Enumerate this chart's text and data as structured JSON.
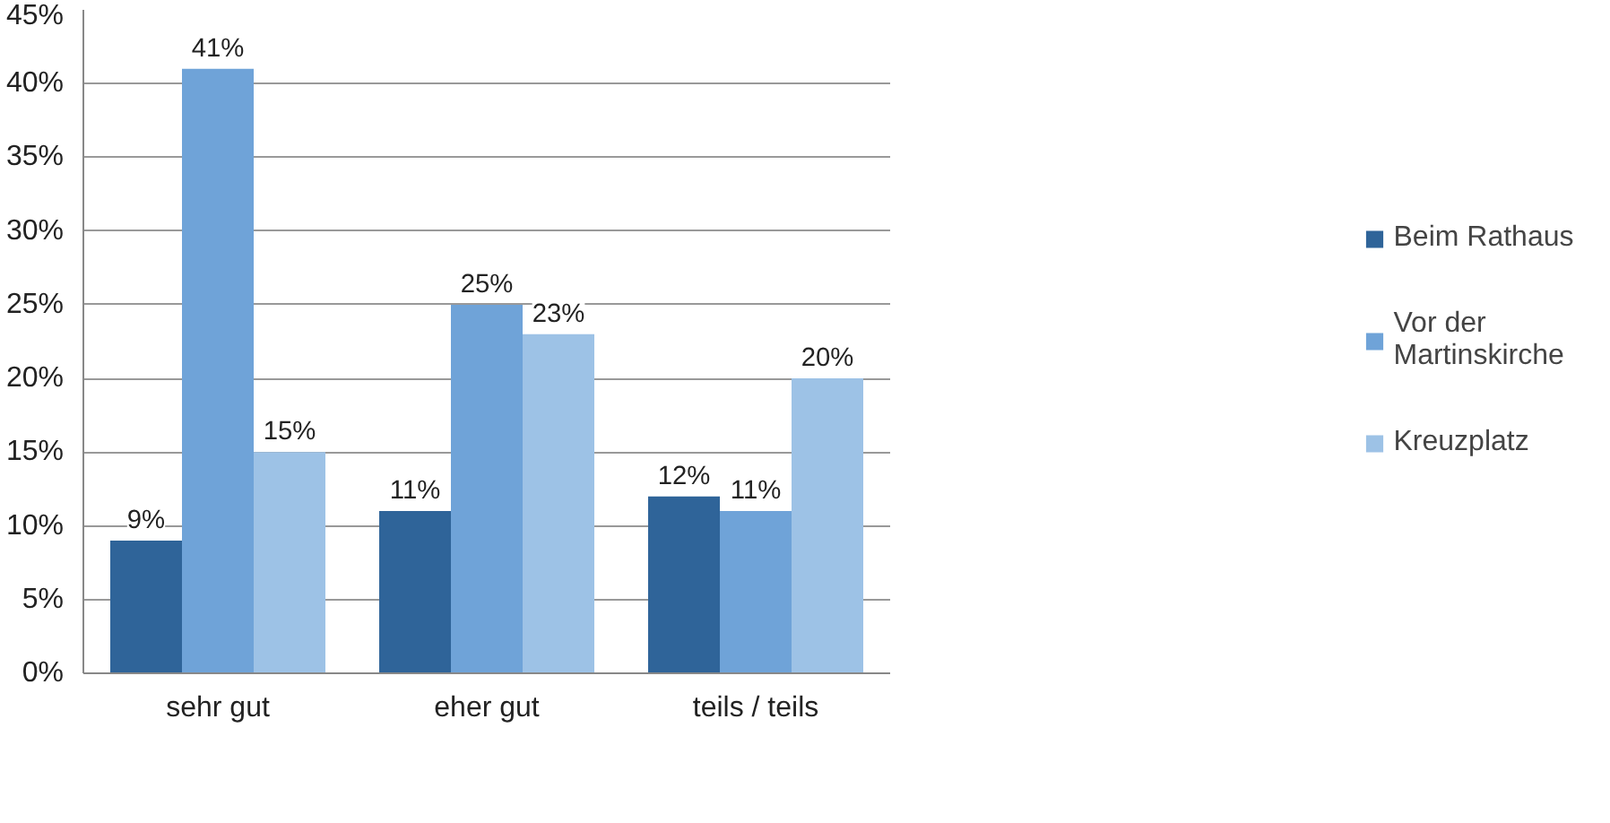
{
  "chart_data": {
    "type": "bar",
    "categories": [
      "sehr gut",
      "eher gut",
      "teils / teils"
    ],
    "series": [
      {
        "name": "Beim Rathaus",
        "color": "#2f6499",
        "values": [
          9,
          11,
          12
        ],
        "value_labels": [
          "9%",
          "11%",
          "12%"
        ]
      },
      {
        "name": "Vor der Martinskirche",
        "color": "#6fa3d8",
        "values": [
          41,
          25,
          11
        ],
        "value_labels": [
          "41%",
          "25%",
          "11%"
        ]
      },
      {
        "name": "Kreuzplatz",
        "color": "#9dc2e6",
        "values": [
          15,
          23,
          20
        ],
        "value_labels": [
          "15%",
          "23%",
          "20%"
        ]
      }
    ],
    "ylim": [
      0,
      45
    ],
    "yticks": [
      {
        "value": 0,
        "label": "0%"
      },
      {
        "value": 5,
        "label": "5%"
      },
      {
        "value": 10,
        "label": "10%"
      },
      {
        "value": 15,
        "label": "15%"
      },
      {
        "value": 20,
        "label": "20%"
      },
      {
        "value": 25,
        "label": "25%"
      },
      {
        "value": 30,
        "label": "30%"
      },
      {
        "value": 35,
        "label": "35%"
      },
      {
        "value": 40,
        "label": "40%"
      },
      {
        "value": 45,
        "label": "45%"
      }
    ],
    "grid": "y",
    "legend": "right"
  }
}
